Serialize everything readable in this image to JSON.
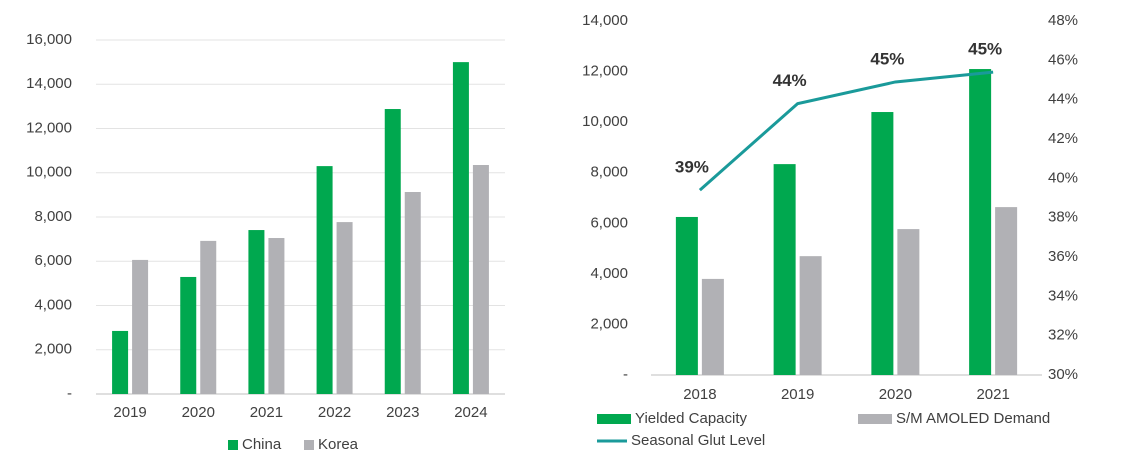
{
  "chart_data": [
    {
      "type": "bar",
      "categories": [
        "2019",
        "2020",
        "2021",
        "2022",
        "2023",
        "2024"
      ],
      "series": [
        {
          "name": "China",
          "color": "#00a84f",
          "values": [
            2850,
            5290,
            7410,
            10300,
            12880,
            15000
          ]
        },
        {
          "name": "Korea",
          "color": "#b1b1b5",
          "values": [
            6060,
            6920,
            7050,
            7770,
            9130,
            10350
          ]
        }
      ],
      "ylim": [
        0,
        16000
      ],
      "yticks": [
        {
          "value": 0,
          "label": "-"
        },
        {
          "value": 2000,
          "label": "2,000"
        },
        {
          "value": 4000,
          "label": "4,000"
        },
        {
          "value": 6000,
          "label": "6,000"
        },
        {
          "value": 8000,
          "label": "8,000"
        },
        {
          "value": 10000,
          "label": "10,000"
        },
        {
          "value": 12000,
          "label": "12,000"
        },
        {
          "value": 14000,
          "label": "14,000"
        },
        {
          "value": 16000,
          "label": "16,000"
        }
      ],
      "grid": true
    },
    {
      "type": "bar",
      "categories": [
        "2018",
        "2019",
        "2020",
        "2021"
      ],
      "series": [
        {
          "name": "Yielded Capacity",
          "color": "#00a84f",
          "values": [
            6250,
            8340,
            10400,
            12100
          ]
        },
        {
          "name": "S/M AMOLED Demand",
          "color": "#b1b1b5",
          "values": [
            3800,
            4700,
            5770,
            6640
          ]
        },
        {
          "name": "Seasonal Glut Level",
          "type": "line",
          "axis": "y2",
          "color": "#1a9a9a",
          "values": [
            39.4,
            43.8,
            44.9,
            45.4
          ],
          "value_labels": [
            "39%",
            "44%",
            "45%",
            "45%"
          ]
        }
      ],
      "ylim": [
        0,
        14000
      ],
      "yticks": [
        {
          "value": 0,
          "label": "-"
        },
        {
          "value": 2000,
          "label": "2,000"
        },
        {
          "value": 4000,
          "label": "4,000"
        },
        {
          "value": 6000,
          "label": "6,000"
        },
        {
          "value": 8000,
          "label": "8,000"
        },
        {
          "value": 10000,
          "label": "10,000"
        },
        {
          "value": 12000,
          "label": "12,000"
        },
        {
          "value": 14000,
          "label": "14,000"
        }
      ],
      "y2lim": [
        30,
        48
      ],
      "y2ticks": [
        {
          "value": 30,
          "label": "30%"
        },
        {
          "value": 32,
          "label": "32%"
        },
        {
          "value": 34,
          "label": "34%"
        },
        {
          "value": 36,
          "label": "36%"
        },
        {
          "value": 38,
          "label": "38%"
        },
        {
          "value": 40,
          "label": "40%"
        },
        {
          "value": 42,
          "label": "42%"
        },
        {
          "value": 44,
          "label": "44%"
        },
        {
          "value": 46,
          "label": "46%"
        },
        {
          "value": 48,
          "label": "48%"
        }
      ],
      "grid": false
    }
  ]
}
